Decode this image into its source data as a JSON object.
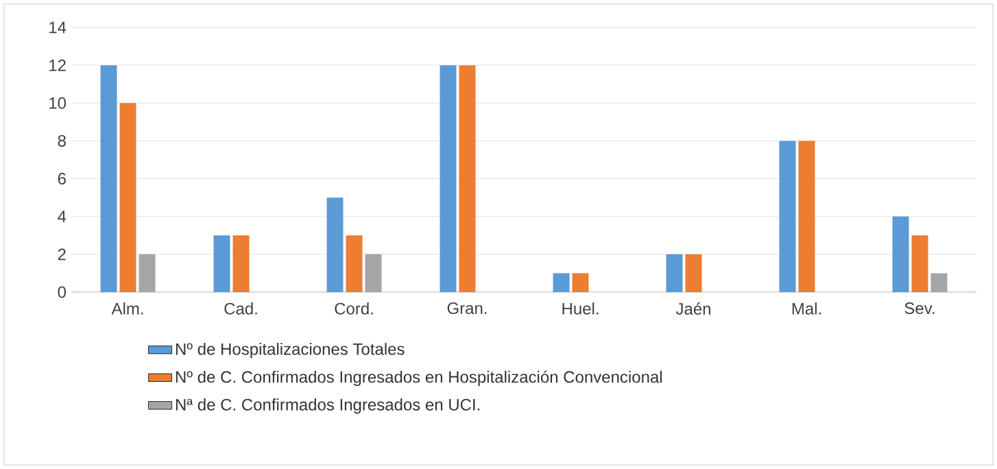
{
  "chart_data": {
    "type": "bar",
    "categories": [
      "Alm.",
      "Cad.",
      "Cord.",
      "Gran.",
      "Huel.",
      "Jaén",
      "Mal.",
      "Sev."
    ],
    "series": [
      {
        "name": "Nº de Hospitalizaciones Totales",
        "color": "#5b9bd5",
        "values": [
          12,
          3,
          5,
          12,
          1,
          2,
          8,
          4
        ]
      },
      {
        "name": "Nº de C. Confirmados Ingresados en Hospitalización Convencional",
        "color": "#ed7d31",
        "values": [
          10,
          3,
          3,
          12,
          1,
          2,
          8,
          3
        ]
      },
      {
        "name": "Nª de C. Confirmados Ingresados en UCI.",
        "color": "#a5a5a5",
        "values": [
          2,
          0,
          2,
          0,
          0,
          0,
          0,
          1
        ]
      }
    ],
    "ylim": [
      0,
      14
    ],
    "yticks": [
      0,
      2,
      4,
      6,
      8,
      10,
      12,
      14
    ],
    "grid": "y",
    "legend": "bottom"
  }
}
